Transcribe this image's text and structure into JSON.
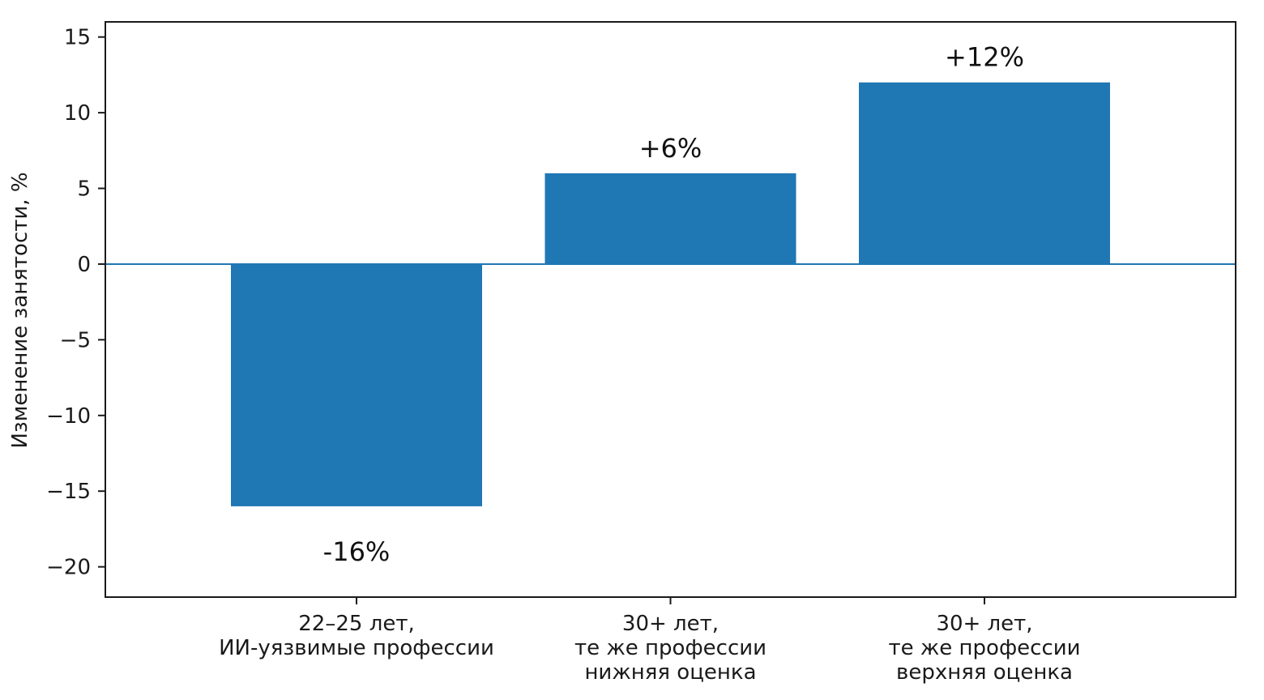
{
  "chart_data": {
    "type": "bar",
    "categories": [
      [
        "22–25 лет,",
        "ИИ-уязвимые профессии"
      ],
      [
        "30+ лет,",
        "те же профессии",
        "нижняя оценка"
      ],
      [
        "30+ лет,",
        "те же профессии",
        "верхняя оценка"
      ]
    ],
    "values": [
      -16,
      6,
      12
    ],
    "data_labels": [
      "-16%",
      "+6%",
      "+12%"
    ],
    "ylabel": "Изменение занятости, %",
    "ylim": [
      -22,
      16
    ],
    "yticks": [
      15,
      10,
      5,
      0,
      -5,
      -10,
      -15,
      -20
    ],
    "ytick_labels": [
      "15",
      "10",
      "5",
      "0",
      "−5",
      "−10",
      "−15",
      "−20"
    ],
    "grid": false,
    "zero_line": true,
    "bar_color": "#1f77b4",
    "axis_color": "#1a1a1a"
  }
}
